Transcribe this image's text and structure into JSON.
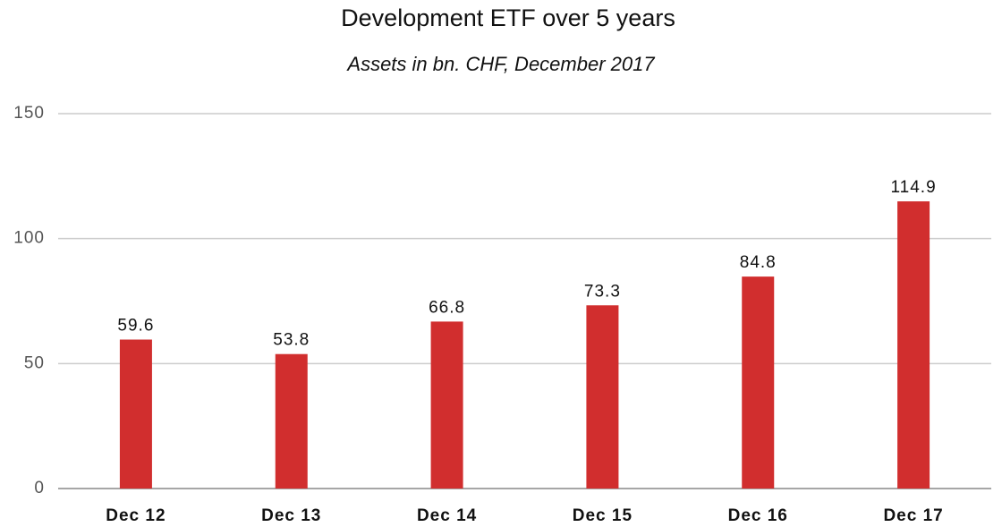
{
  "chart_data": {
    "type": "bar",
    "title": "Development ETF over 5 years",
    "subtitle": "Assets in bn. CHF, December 2017",
    "categories": [
      "Dec 12",
      "Dec 13",
      "Dec 14",
      "Dec 15",
      "Dec 16",
      "Dec 17"
    ],
    "values": [
      59.6,
      53.8,
      66.8,
      73.3,
      84.8,
      114.9
    ],
    "color": "#d12e2e",
    "ylim": [
      0,
      150
    ],
    "yticks": [
      0,
      50,
      100,
      150
    ],
    "grid": true
  }
}
